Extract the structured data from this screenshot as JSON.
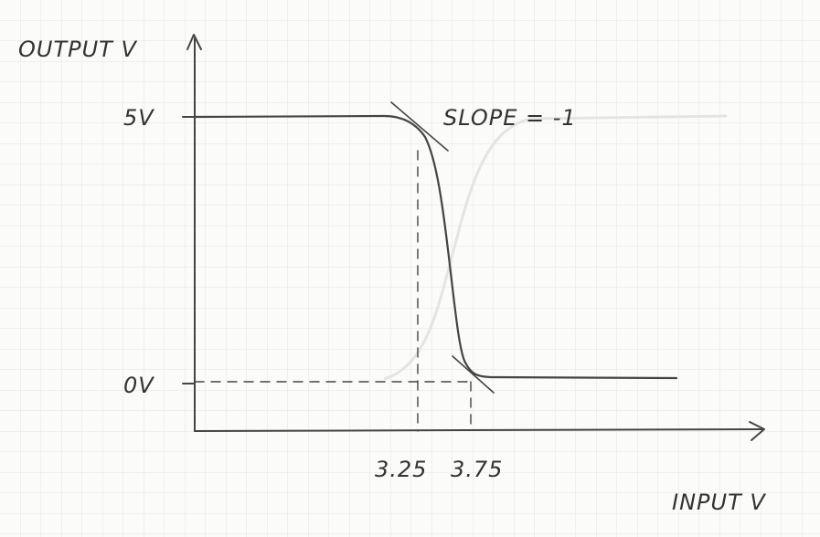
{
  "axes": {
    "y_label": "OUTPUT V",
    "x_label": "INPUT V"
  },
  "levels": {
    "high": "5V",
    "low": "0V"
  },
  "annotation": "SLOPE = -1",
  "thresholds": [
    "3.25",
    "3.75"
  ]
}
